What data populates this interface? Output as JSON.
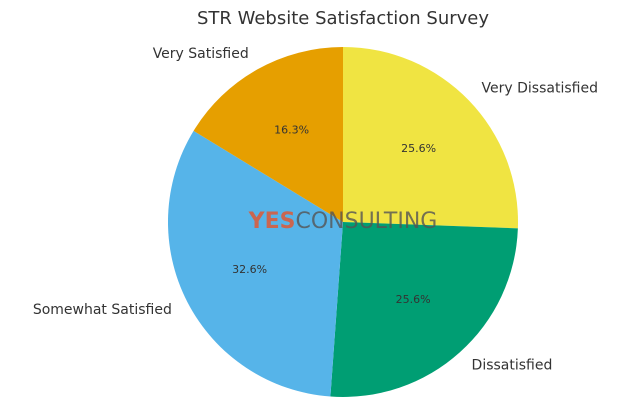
{
  "chart_data": {
    "type": "pie",
    "title": "STR Website Satisfaction Survey",
    "categories": [
      "Very Dissatisfied",
      "Dissatisfied",
      "Somewhat Satisfied",
      "Very Satisfied"
    ],
    "values": [
      25.6,
      25.6,
      32.6,
      16.3
    ],
    "value_labels": [
      "25.6%",
      "25.6%",
      "32.6%",
      "16.3%"
    ],
    "colors": [
      "#f0e442",
      "#009e73",
      "#56b4e9",
      "#e69f00"
    ],
    "watermark": [
      "YES",
      "CONSULTING"
    ]
  }
}
